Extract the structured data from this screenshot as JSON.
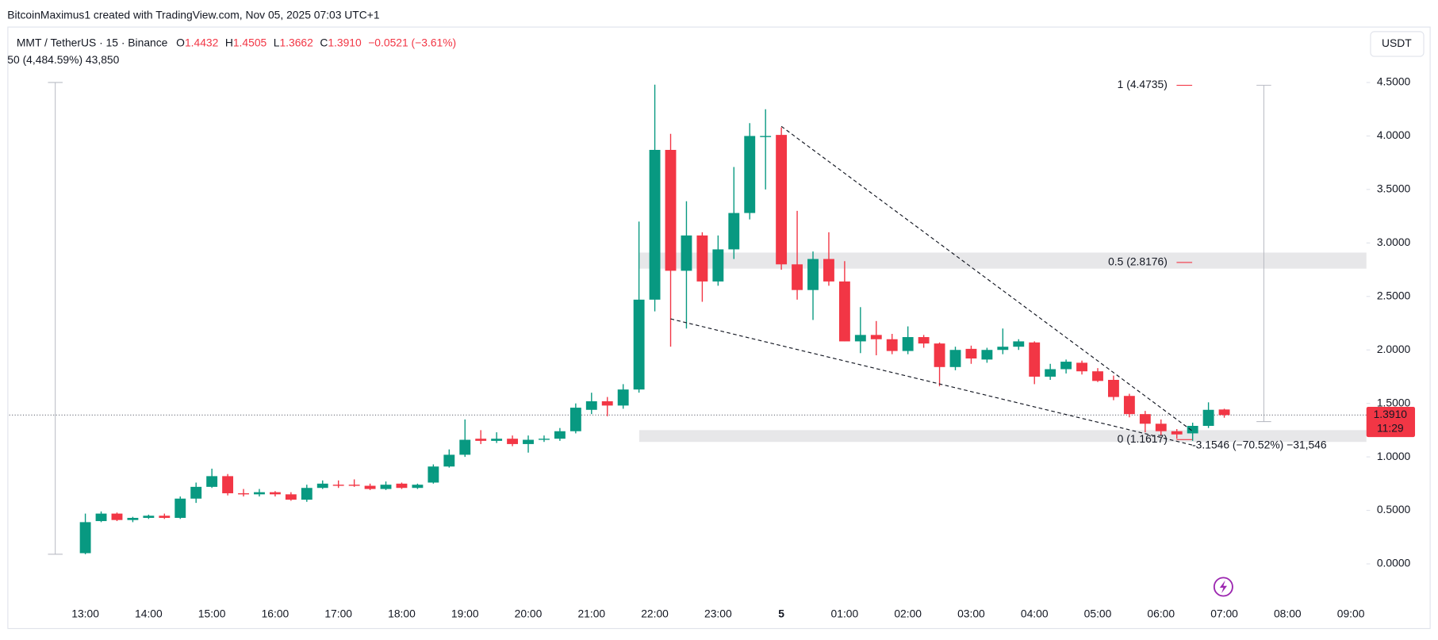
{
  "chart_data": {
    "type": "candlestick",
    "header": "BitcoinMaximus1 created with TradingView.com, Nov 05, 2025 07:03 UTC+1",
    "title": "MMT / TetherUS · 15 · Binance",
    "legend": [
      {
        "label": "O",
        "value": "1.4432"
      },
      {
        "label": "H",
        "value": "1.4505"
      },
      {
        "label": "L",
        "value": "1.3662"
      },
      {
        "label": "C",
        "value": "1.3910"
      }
    ],
    "change": "−0.0521 (−3.61%)",
    "indicator_line": "50 (4,484.59%) 43,850",
    "currency": "USDT",
    "last_price_label": "1.3910",
    "countdown": "11:29",
    "up_color": "#089981",
    "down_color": "#f23645",
    "categories": [
      "13:00",
      null,
      null,
      null,
      "14:00",
      null,
      null,
      null,
      "15:00",
      null,
      null,
      null,
      "16:00",
      null,
      null,
      null,
      "17:00",
      null,
      null,
      null,
      "18:00",
      null,
      null,
      null,
      "19:00",
      null,
      null,
      null,
      "20:00",
      null,
      null,
      null,
      "21:00",
      null,
      null,
      null,
      "22:00",
      null,
      null,
      null,
      "23:00",
      null,
      null,
      null,
      "5",
      null,
      null,
      null,
      "01:00",
      null,
      null,
      null,
      "02:00",
      null,
      null,
      null,
      "03:00",
      null,
      null,
      null,
      "04:00",
      null,
      null,
      null,
      "05:00",
      null,
      null,
      null,
      "06:00",
      null,
      null,
      null,
      "07:00",
      null,
      null,
      null,
      "08:00",
      null,
      null,
      null,
      "09:00"
    ],
    "open": [
      0.1,
      0.4,
      0.47,
      0.41,
      0.43,
      0.45,
      0.43,
      0.61,
      0.72,
      0.82,
      0.66,
      0.65,
      0.67,
      0.65,
      0.6,
      0.71,
      0.74,
      0.74,
      0.73,
      0.7,
      0.75,
      0.71,
      0.76,
      0.91,
      1.02,
      1.17,
      1.15,
      1.17,
      1.12,
      1.16,
      1.17,
      1.24,
      1.44,
      1.52,
      1.48,
      1.63,
      2.47,
      3.87,
      2.74,
      3.07,
      2.64,
      2.94,
      3.28,
      4.0,
      4.01,
      2.8,
      2.56,
      2.85,
      2.64,
      2.08,
      2.14,
      2.1,
      1.99,
      2.12,
      2.06,
      1.84,
      2.01,
      1.91,
      2.0,
      2.03,
      2.07,
      1.75,
      1.82,
      1.88,
      1.8,
      1.72,
      1.57,
      1.4,
      1.31,
      1.24,
      1.22,
      1.29,
      1.4432,
      null,
      null,
      null,
      null,
      null,
      null,
      null,
      null
    ],
    "high": [
      0.47,
      0.49,
      0.48,
      0.44,
      0.46,
      0.47,
      0.63,
      0.76,
      0.89,
      0.84,
      0.7,
      0.7,
      0.68,
      0.67,
      0.74,
      0.78,
      0.78,
      0.79,
      0.75,
      0.77,
      0.76,
      0.75,
      0.93,
      1.07,
      1.35,
      1.25,
      1.23,
      1.2,
      1.2,
      1.2,
      1.27,
      1.5,
      1.6,
      1.56,
      1.68,
      3.2,
      4.48,
      4.02,
      3.39,
      3.1,
      3.07,
      3.71,
      4.12,
      4.25,
      4.08,
      3.3,
      2.92,
      3.1,
      2.83,
      2.4,
      2.27,
      2.15,
      2.22,
      2.14,
      2.07,
      2.03,
      2.04,
      2.02,
      2.2,
      2.1,
      2.08,
      1.87,
      1.91,
      1.9,
      1.83,
      1.76,
      1.59,
      1.43,
      1.35,
      1.26,
      1.32,
      1.51,
      1.4505,
      null,
      null,
      null,
      null,
      null,
      null,
      null,
      null
    ],
    "low": [
      0.09,
      0.39,
      0.4,
      0.39,
      0.42,
      0.42,
      0.42,
      0.57,
      0.71,
      0.64,
      0.63,
      0.63,
      0.63,
      0.59,
      0.58,
      0.7,
      0.71,
      0.72,
      0.69,
      0.69,
      0.7,
      0.7,
      0.75,
      0.9,
      1.0,
      1.12,
      1.13,
      1.1,
      1.04,
      1.14,
      1.15,
      1.22,
      1.4,
      1.38,
      1.45,
      1.6,
      2.36,
      2.03,
      2.2,
      2.45,
      2.6,
      2.85,
      3.22,
      3.5,
      2.75,
      2.47,
      2.28,
      2.6,
      2.08,
      1.97,
      1.95,
      1.96,
      1.96,
      2.02,
      1.66,
      1.81,
      1.87,
      1.88,
      1.96,
      2.0,
      1.68,
      1.72,
      1.78,
      1.77,
      1.7,
      1.53,
      1.37,
      1.23,
      1.2,
      1.17,
      1.15,
      1.27,
      1.3662,
      null,
      null,
      null,
      null,
      null,
      null,
      null,
      null
    ],
    "close": [
      0.39,
      0.47,
      0.41,
      0.43,
      0.45,
      0.43,
      0.61,
      0.72,
      0.82,
      0.66,
      0.65,
      0.67,
      0.65,
      0.6,
      0.71,
      0.75,
      0.73,
      0.73,
      0.7,
      0.74,
      0.71,
      0.74,
      0.91,
      1.02,
      1.16,
      1.15,
      1.17,
      1.12,
      1.16,
      1.17,
      1.24,
      1.46,
      1.52,
      1.48,
      1.63,
      2.47,
      3.87,
      2.74,
      3.07,
      2.64,
      2.94,
      3.28,
      4.0,
      4.0,
      2.8,
      2.56,
      2.85,
      2.64,
      2.08,
      2.14,
      2.1,
      1.99,
      2.12,
      2.06,
      1.84,
      2.0,
      1.92,
      2.0,
      2.03,
      2.08,
      1.75,
      1.82,
      1.89,
      1.8,
      1.71,
      1.56,
      1.4,
      1.31,
      1.24,
      1.21,
      1.29,
      1.44,
      1.391,
      null,
      null,
      null,
      null,
      null,
      null,
      null,
      null
    ],
    "ylim": [
      -0.386,
      5.014
    ],
    "yticks": [
      {
        "value": 0,
        "label": "0.0000"
      },
      {
        "value": 0.5,
        "label": "0.5000"
      },
      {
        "value": 1,
        "label": "1.0000"
      },
      {
        "value": 1.5,
        "label": "1.5000"
      },
      {
        "value": 2,
        "label": "2.0000"
      },
      {
        "value": 2.5,
        "label": "2.5000"
      },
      {
        "value": 3,
        "label": "3.0000"
      },
      {
        "value": 3.5,
        "label": "3.5000"
      },
      {
        "value": 4,
        "label": "4.0000"
      },
      {
        "value": 4.5,
        "label": "4.5000"
      }
    ],
    "fib_levels": [
      {
        "price": 4.4735,
        "label": "1 (4.4735)"
      },
      {
        "price": 2.8176,
        "label": "0.5 (2.8176)"
      },
      {
        "price": 1.1617,
        "label": "0 (1.1617)"
      }
    ],
    "zones": [
      {
        "from": 2.76,
        "to": 2.91
      },
      {
        "from": 1.14,
        "to": 1.25
      }
    ],
    "trendlines": [
      {
        "x": [
          44,
          70
        ],
        "y": [
          4.09,
          1.24
        ]
      },
      {
        "x": [
          37,
          70
        ],
        "y": [
          2.29,
          1.11
        ]
      }
    ],
    "range_lines": [
      {
        "x": 74.5,
        "from": 4.4735,
        "to": 1.33
      },
      {
        "x": -1.9,
        "from": 0.09,
        "to": 4.5
      }
    ],
    "measure_label": "-3.1546 (−70.52%) −31,546"
  }
}
